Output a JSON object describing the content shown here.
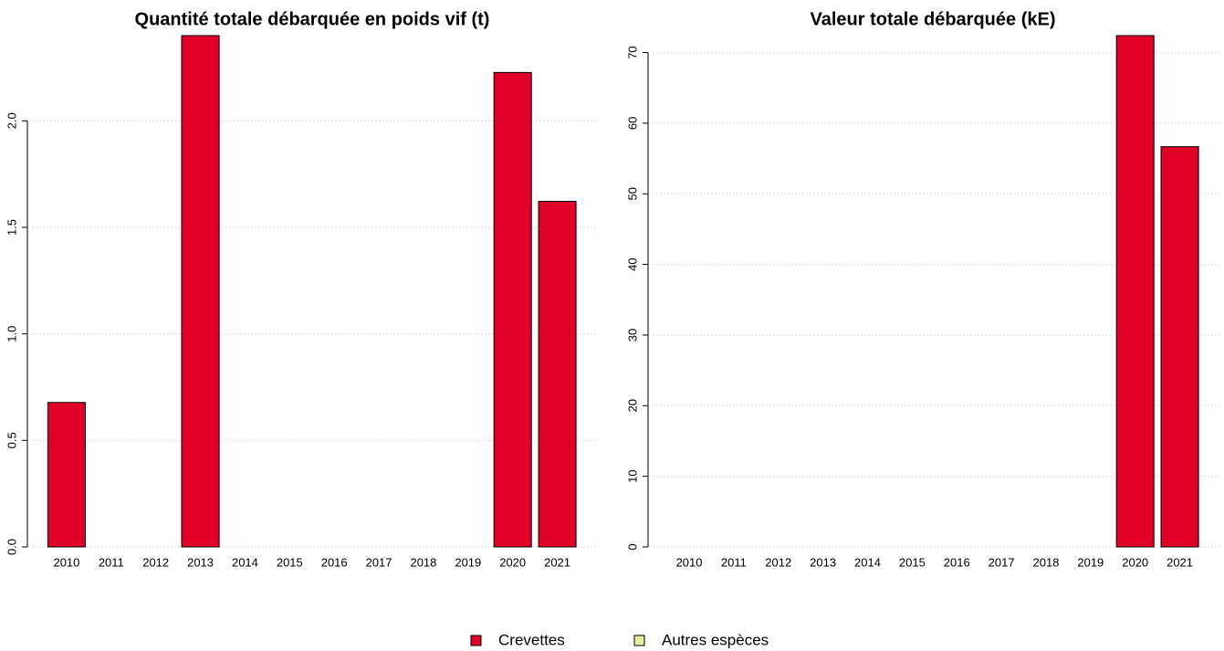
{
  "chart_data": [
    {
      "type": "bar",
      "title": "Quantité totale débarquée en poids vif (t)",
      "categories": [
        "2010",
        "2011",
        "2012",
        "2013",
        "2014",
        "2015",
        "2016",
        "2017",
        "2018",
        "2019",
        "2020",
        "2021"
      ],
      "series": [
        {
          "name": "Crevettes",
          "color": "#e00028",
          "values": [
            0.678,
            0,
            0,
            2.4,
            0,
            0,
            0,
            0,
            0,
            0,
            2.227,
            1.622
          ]
        },
        {
          "name": "Autres espèces",
          "color": "#e8eba0",
          "values": [
            0,
            0,
            0,
            0,
            0,
            0,
            0,
            0,
            0,
            0,
            0,
            0
          ]
        }
      ],
      "ylim": [
        0,
        2.4
      ],
      "yticks": [
        {
          "value": 0,
          "label": "0.0"
        },
        0.5,
        {
          "value": 1,
          "label": "1.0"
        },
        1.5,
        {
          "value": 2,
          "label": "2.0"
        }
      ],
      "grid": true,
      "stacked": true
    },
    {
      "type": "bar",
      "title": "Valeur totale débarquée (kE)",
      "categories": [
        "2010",
        "2011",
        "2012",
        "2013",
        "2014",
        "2015",
        "2016",
        "2017",
        "2018",
        "2019",
        "2020",
        "2021"
      ],
      "series": [
        {
          "name": "Crevettes",
          "color": "#e00028",
          "values": [
            0,
            0,
            0,
            0,
            0,
            0,
            0,
            0,
            0,
            0,
            72.4,
            56.67
          ]
        },
        {
          "name": "Autres espèces",
          "color": "#e8eba0",
          "values": [
            0,
            0,
            0,
            0,
            0,
            0,
            0,
            0,
            0,
            0,
            0,
            0
          ]
        }
      ],
      "ylim": [
        0,
        72.4
      ],
      "yticks": [
        0,
        10,
        20,
        30,
        40,
        50,
        60,
        70
      ],
      "grid": true,
      "stacked": true
    }
  ]
}
